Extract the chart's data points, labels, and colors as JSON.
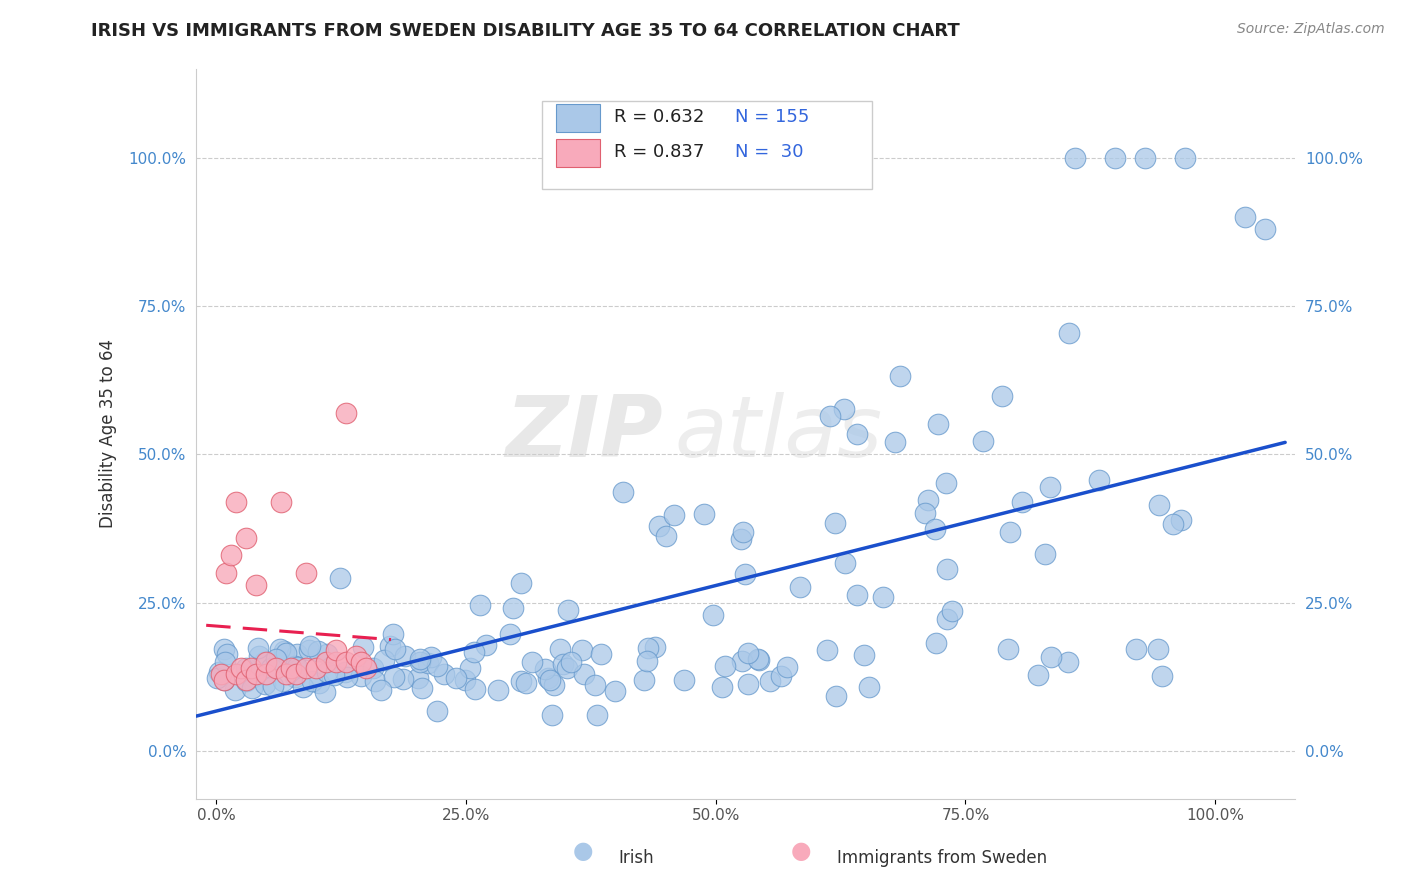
{
  "title": "IRISH VS IMMIGRANTS FROM SWEDEN DISABILITY AGE 35 TO 64 CORRELATION CHART",
  "source": "Source: ZipAtlas.com",
  "ylabel": "Disability Age 35 to 64",
  "x_ticks": [
    0.0,
    0.25,
    0.5,
    0.75,
    1.0
  ],
  "x_tick_labels": [
    "0.0%",
    "25.0%",
    "50.0%",
    "75.0%",
    "100.0%"
  ],
  "y_ticks": [
    0.0,
    0.25,
    0.5,
    0.75,
    1.0
  ],
  "y_tick_labels": [
    "0.0%",
    "25.0%",
    "50.0%",
    "75.0%",
    "100.0%"
  ],
  "xlim": [
    -0.02,
    1.08
  ],
  "ylim": [
    -0.08,
    1.15
  ],
  "irish_color": "#aac8e8",
  "irish_edge_color": "#6699cc",
  "swedish_color": "#f8aabb",
  "swedish_edge_color": "#e06070",
  "irish_line_color": "#1a4fcc",
  "swedish_line_color": "#e82050",
  "irish_R": 0.632,
  "irish_N": 155,
  "swedish_R": 0.837,
  "swedish_N": 30,
  "legend_irish_label": "Irish",
  "legend_swedish_label": "Immigrants from Sweden",
  "watermark_1": "ZIP",
  "watermark_2": "atlas",
  "background_color": "#ffffff",
  "grid_color": "#cccccc"
}
